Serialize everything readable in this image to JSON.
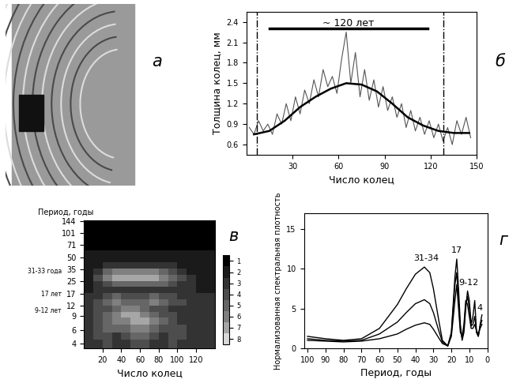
{
  "chart_data": [
    {
      "type": "image",
      "label": "а"
    },
    {
      "type": "line",
      "label": "б",
      "x_label": "Число колец",
      "y_label": "Толщина колец, мм",
      "xlim": [
        0,
        150
      ],
      "xticks": [
        30,
        60,
        90,
        120,
        150
      ],
      "ylim": [
        0.45,
        2.55
      ],
      "yticks": [
        0.6,
        0.9,
        1.2,
        1.5,
        1.8,
        2.1,
        2.4
      ],
      "series": [
        {
          "color": "#555555",
          "x": [
            2,
            5,
            8,
            11,
            14,
            17,
            20,
            23,
            26,
            29,
            32,
            35,
            38,
            41,
            44,
            47,
            50,
            53,
            56,
            59,
            62,
            65,
            68,
            71,
            74,
            77,
            80,
            83,
            86,
            89,
            92,
            95,
            98,
            101,
            104,
            107,
            110,
            113,
            116,
            119,
            122,
            125,
            128,
            131,
            134,
            137,
            140,
            143,
            146
          ],
          "values": [
            0.85,
            0.75,
            0.95,
            0.8,
            0.9,
            0.75,
            1.05,
            0.9,
            1.2,
            0.95,
            1.3,
            1.05,
            1.4,
            1.2,
            1.55,
            1.3,
            1.7,
            1.45,
            1.6,
            1.35,
            1.85,
            2.25,
            1.5,
            1.95,
            1.3,
            1.7,
            1.25,
            1.55,
            1.15,
            1.45,
            1.1,
            1.3,
            1.0,
            1.2,
            0.85,
            1.1,
            0.8,
            1.0,
            0.75,
            0.95,
            0.7,
            0.9,
            0.65,
            0.85,
            0.6,
            0.95,
            0.75,
            1.0,
            0.7
          ]
        },
        {
          "color": "#000000",
          "x": [
            5,
            15,
            25,
            35,
            45,
            55,
            65,
            75,
            85,
            95,
            105,
            115,
            125,
            135,
            145
          ],
          "values": [
            0.75,
            0.8,
            0.95,
            1.15,
            1.3,
            1.42,
            1.5,
            1.48,
            1.38,
            1.2,
            1.0,
            0.88,
            0.8,
            0.77,
            0.77
          ]
        }
      ],
      "vlines": [
        7,
        128
      ],
      "span": {
        "start": 15,
        "end": 118,
        "y": 2.3,
        "text": "~ 120 лет"
      }
    },
    {
      "type": "heatmap",
      "label": "в",
      "x_label": "Число колец",
      "y_label": "Период, годы",
      "log": "y",
      "xlim": [
        0,
        140
      ],
      "xticks": [
        20,
        40,
        60,
        80,
        100,
        120
      ],
      "ylim": [
        3.5,
        145
      ],
      "yticks": [
        4,
        6,
        9,
        12,
        17,
        25,
        35,
        50,
        71,
        101,
        144
      ],
      "x_edges": [
        0,
        10,
        20,
        30,
        40,
        50,
        60,
        70,
        80,
        90,
        100,
        110,
        120,
        130,
        140
      ],
      "y_edges": [
        3.5,
        4.5,
        5.5,
        7,
        8.5,
        10,
        12,
        14.5,
        17.5,
        21,
        25,
        30,
        36,
        43,
        51,
        61,
        72,
        86,
        102,
        122,
        145
      ],
      "cells": [
        [
          3,
          3,
          4,
          3,
          3,
          4,
          4,
          3,
          3,
          4,
          3,
          3,
          3,
          3
        ],
        [
          3,
          4,
          4,
          3,
          4,
          5,
          5,
          4,
          3,
          4,
          4,
          3,
          3,
          3
        ],
        [
          3,
          4,
          5,
          5,
          5,
          6,
          6,
          5,
          4,
          4,
          4,
          3,
          3,
          3
        ],
        [
          3,
          4,
          5,
          6,
          6,
          7,
          7,
          6,
          5,
          4,
          3,
          3,
          3,
          3
        ],
        [
          3,
          4,
          5,
          6,
          7,
          7,
          6,
          5,
          4,
          4,
          3,
          3,
          3,
          3
        ],
        [
          3,
          4,
          4,
          5,
          6,
          6,
          5,
          4,
          4,
          3,
          3,
          3,
          3,
          3
        ],
        [
          3,
          4,
          5,
          6,
          5,
          5,
          5,
          6,
          5,
          4,
          4,
          3,
          3,
          3
        ],
        [
          3,
          3,
          4,
          5,
          4,
          4,
          4,
          5,
          4,
          4,
          3,
          3,
          3,
          3
        ],
        [
          2,
          3,
          3,
          3,
          3,
          3,
          3,
          3,
          3,
          3,
          3,
          3,
          2,
          2
        ],
        [
          2,
          3,
          4,
          5,
          5,
          5,
          5,
          5,
          5,
          4,
          3,
          3,
          2,
          2
        ],
        [
          2,
          4,
          6,
          7,
          7,
          7,
          7,
          7,
          6,
          5,
          4,
          3,
          2,
          2
        ],
        [
          2,
          3,
          5,
          6,
          6,
          6,
          6,
          6,
          5,
          4,
          3,
          2,
          2,
          2
        ],
        [
          2,
          2,
          3,
          3,
          3,
          3,
          3,
          3,
          3,
          3,
          2,
          2,
          2,
          2
        ],
        [
          2,
          2,
          2,
          2,
          2,
          2,
          2,
          2,
          2,
          2,
          2,
          2,
          2,
          2
        ],
        [
          2,
          2,
          2,
          2,
          2,
          2,
          2,
          2,
          2,
          2,
          2,
          2,
          2,
          2
        ],
        [
          1,
          1,
          1,
          1,
          1,
          1,
          1,
          1,
          1,
          1,
          1,
          1,
          1,
          1
        ],
        [
          1,
          1,
          1,
          1,
          1,
          1,
          1,
          1,
          1,
          1,
          1,
          1,
          1,
          1
        ],
        [
          1,
          1,
          1,
          1,
          1,
          1,
          1,
          1,
          1,
          1,
          1,
          1,
          1,
          1
        ],
        [
          1,
          1,
          1,
          1,
          1,
          1,
          1,
          1,
          1,
          1,
          1,
          1,
          1,
          1
        ],
        [
          1,
          1,
          1,
          1,
          1,
          1,
          1,
          1,
          1,
          1,
          1,
          1,
          1,
          1
        ]
      ],
      "colors": [
        "#000000",
        "#1a1a1a",
        "#333333",
        "#4d4d4d",
        "#666666",
        "#808080",
        "#a6a6a6",
        "#d9d9d9"
      ],
      "colorbar_range": [
        0.5,
        8.5
      ],
      "colorbar_ticks": [
        1,
        2,
        3,
        4,
        5,
        6,
        7,
        8
      ],
      "annotations": [
        {
          "text": "31-33 года",
          "y": 33
        },
        {
          "text": "17 лет",
          "y": 17
        },
        {
          "text": "9-12 лет",
          "y": 10.5
        }
      ]
    },
    {
      "type": "line",
      "label": "г",
      "x_label": "Период, годы",
      "y_label": "Нормализованная спектральная плотность",
      "xlim": [
        102,
        0
      ],
      "xticks": [
        100,
        90,
        80,
        70,
        60,
        50,
        40,
        30,
        20,
        10,
        0
      ],
      "ylim": [
        0,
        17
      ],
      "yticks": [
        0,
        5,
        10,
        15
      ],
      "series": [
        {
          "color": "#000000",
          "x": [
            100,
            90,
            80,
            70,
            60,
            50,
            45,
            40,
            35,
            32,
            30,
            27,
            25,
            22,
            20,
            18,
            17,
            16,
            15,
            14,
            13,
            12,
            11,
            10,
            9,
            8,
            7,
            6,
            5,
            4,
            3
          ],
          "values": [
            1.5,
            1.2,
            1.0,
            1.2,
            2.5,
            5.5,
            7.5,
            9.3,
            10.2,
            9.5,
            7.5,
            3.5,
            1.0,
            0.3,
            2.0,
            9.0,
            11.2,
            7.5,
            3.0,
            1.0,
            2.0,
            5.0,
            7.2,
            6.0,
            3.0,
            4.0,
            6.0,
            2.0,
            1.5,
            3.0,
            4.2
          ]
        },
        {
          "color": "#000000",
          "x": [
            100,
            90,
            80,
            70,
            60,
            50,
            45,
            40,
            35,
            32,
            30,
            27,
            25,
            22,
            20,
            18,
            17,
            16,
            15,
            14,
            13,
            12,
            11,
            10,
            9,
            8,
            7,
            6,
            5,
            4,
            3
          ],
          "values": [
            1.2,
            1.0,
            0.9,
            1.0,
            1.8,
            3.3,
            4.5,
            5.6,
            6.1,
            5.6,
            4.5,
            2.2,
            0.8,
            0.3,
            1.8,
            8.0,
            9.5,
            6.0,
            2.5,
            1.2,
            2.5,
            5.5,
            6.5,
            5.0,
            2.8,
            3.0,
            4.0,
            2.0,
            1.5,
            2.8,
            3.5
          ]
        },
        {
          "color": "#000000",
          "x": [
            100,
            90,
            80,
            70,
            60,
            50,
            45,
            40,
            35,
            32,
            30,
            27,
            25,
            22,
            20,
            18,
            17,
            16,
            15,
            14,
            13,
            12,
            11,
            10,
            9,
            8,
            7,
            6,
            5,
            4,
            3
          ],
          "values": [
            1.0,
            0.9,
            0.8,
            0.9,
            1.2,
            1.8,
            2.4,
            2.9,
            3.2,
            3.0,
            2.4,
            1.3,
            0.6,
            0.3,
            1.5,
            6.0,
            8.0,
            5.0,
            2.0,
            1.5,
            3.0,
            6.0,
            5.5,
            4.0,
            2.5,
            2.5,
            3.0,
            2.2,
            1.8,
            2.5,
            3.0
          ]
        }
      ],
      "annotations": [
        {
          "text": "31-34",
          "x": 34,
          "y": 10.8
        },
        {
          "text": "17",
          "x": 17,
          "y": 11.8
        },
        {
          "text": "9-12",
          "x": 10.5,
          "y": 7.7
        },
        {
          "text": "4",
          "x": 4,
          "y": 4.6
        }
      ]
    }
  ]
}
